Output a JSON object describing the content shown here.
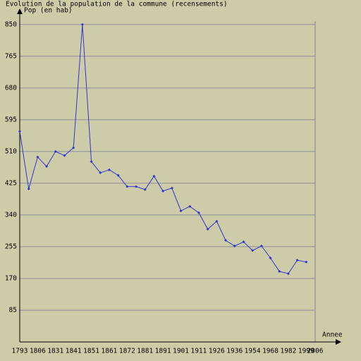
{
  "chart_data": {
    "type": "line",
    "title": "Evolution de la population de la commune (recensements)",
    "y_label": "Pop (en hab)",
    "x_label": "Annee",
    "categories": [
      "1793",
      null,
      "1806",
      null,
      "1831",
      null,
      "1841",
      null,
      "1851",
      null,
      "1861",
      null,
      "1872",
      null,
      "1881",
      null,
      "1891",
      null,
      "1901",
      null,
      "1911",
      null,
      "1926",
      null,
      "1936",
      null,
      "1954",
      null,
      "1968",
      null,
      "1982",
      null,
      "1999",
      "2006"
    ],
    "series": [
      {
        "name": "Pop",
        "color": "#3333cc",
        "values": [
          564,
          410,
          495,
          470,
          510,
          499,
          520,
          850,
          483,
          453,
          461,
          446,
          416,
          416,
          408,
          444,
          404,
          412,
          351,
          363,
          346,
          302,
          323,
          272,
          257,
          268,
          245,
          257,
          225,
          189,
          183,
          219,
          214,
          null
        ]
      }
    ],
    "ylim": [
      0,
      859
    ],
    "yticks": [
      85,
      170,
      255,
      340,
      425,
      510,
      595,
      680,
      765,
      850
    ],
    "grid": true
  }
}
